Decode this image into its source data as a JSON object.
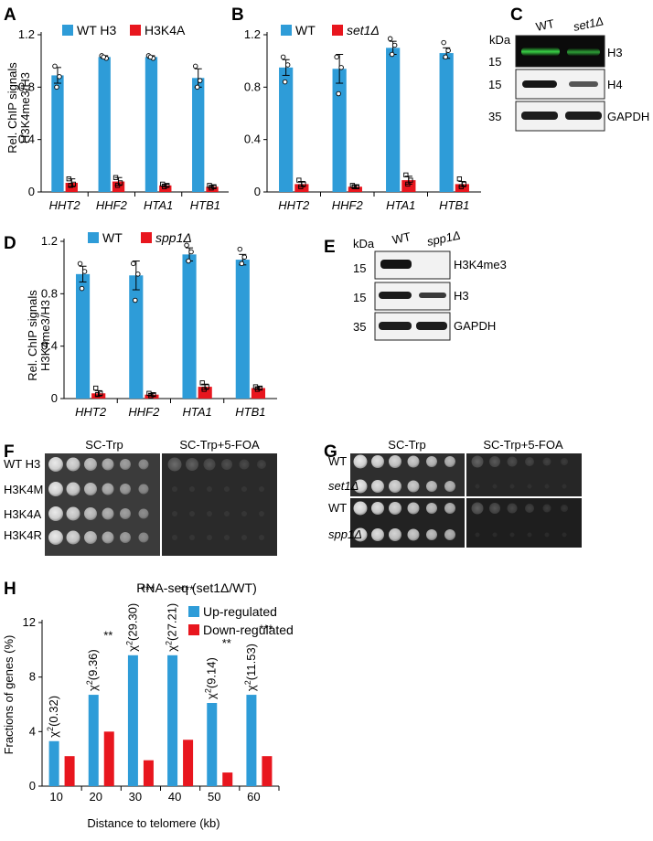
{
  "colors": {
    "blue": "#2E9CD8",
    "red": "#E8161E",
    "black": "#111111"
  },
  "panels": {
    "A": {
      "letter": "A",
      "ylabel": [
        "Rel. ChIP signals",
        "H3K4me3/H3"
      ],
      "legend": [
        "WT H3",
        "H3K4A"
      ],
      "yticks": [
        "0",
        "0.4",
        "0.8",
        "1.2"
      ],
      "chart_data": {
        "type": "bar",
        "categories": [
          "HHT2",
          "HHF2",
          "HTA1",
          "HTB1"
        ],
        "ylim": [
          0,
          1.2
        ],
        "series": [
          {
            "name": "WT H3",
            "values": [
              0.89,
              1.03,
              1.03,
              0.87
            ],
            "err": [
              0.06,
              0.01,
              0.01,
              0.07
            ],
            "points": [
              [
                0.96,
                0.88,
                0.8
              ],
              [
                1.04,
                1.02,
                1.03
              ],
              [
                1.04,
                1.02,
                1.03
              ],
              [
                0.96,
                0.85,
                0.8
              ]
            ]
          },
          {
            "name": "H3K4A",
            "values": [
              0.07,
              0.08,
              0.05,
              0.04
            ],
            "err": [
              0.03,
              0.03,
              0.01,
              0.01
            ],
            "points": [
              [
                0.1,
                0.06,
                0.05
              ],
              [
                0.11,
                0.07,
                0.05
              ],
              [
                0.06,
                0.05,
                0.04
              ],
              [
                0.05,
                0.04,
                0.03
              ]
            ]
          }
        ]
      }
    },
    "B": {
      "letter": "B",
      "legend": [
        "WT",
        "set1Δ"
      ],
      "yticks": [
        "0",
        "0.4",
        "0.8",
        "1.2"
      ],
      "chart_data": {
        "type": "bar",
        "categories": [
          "HHT2",
          "HHF2",
          "HTA1",
          "HTB1"
        ],
        "ylim": [
          0,
          1.2
        ],
        "series": [
          {
            "name": "WT",
            "values": [
              0.95,
              0.94,
              1.1,
              1.06
            ],
            "err": [
              0.06,
              0.11,
              0.05,
              0.04
            ],
            "points": [
              [
                1.03,
                0.97,
                0.84
              ],
              [
                1.03,
                0.95,
                0.75
              ],
              [
                1.17,
                1.12,
                1.05
              ],
              [
                1.14,
                1.08,
                1.03
              ]
            ]
          },
          {
            "name": "set1Δ",
            "values": [
              0.06,
              0.04,
              0.09,
              0.06
            ],
            "err": [
              0.02,
              0.01,
              0.03,
              0.02
            ],
            "points": [
              [
                0.09,
                0.06,
                0.04
              ],
              [
                0.05,
                0.04,
                0.04
              ],
              [
                0.13,
                0.09,
                0.06
              ],
              [
                0.1,
                0.06,
                0.04
              ]
            ]
          }
        ]
      }
    },
    "C": {
      "letter": "C",
      "kda": "kDa",
      "lanes": [
        "WT",
        "set1Δ"
      ],
      "markers": [
        "15",
        "15",
        "35"
      ],
      "proteins": [
        "H3",
        "H4",
        "GAPDH"
      ]
    },
    "D": {
      "letter": "D",
      "ylabel": [
        "Rel. ChIP signals",
        "H3K4me3/H3"
      ],
      "legend": [
        "WT",
        "spp1Δ"
      ],
      "yticks": [
        "0",
        "0.4",
        "0.8",
        "1.2"
      ],
      "chart_data": {
        "type": "bar",
        "categories": [
          "HHT2",
          "HHF2",
          "HTA1",
          "HTB1"
        ],
        "ylim": [
          0,
          1.2
        ],
        "series": [
          {
            "name": "WT",
            "values": [
              0.95,
              0.94,
              1.1,
              1.06
            ],
            "err": [
              0.06,
              0.11,
              0.05,
              0.04
            ],
            "points": [
              [
                1.03,
                0.97,
                0.84
              ],
              [
                1.03,
                0.95,
                0.75
              ],
              [
                1.17,
                1.12,
                1.05
              ],
              [
                1.14,
                1.08,
                1.03
              ]
            ]
          },
          {
            "name": "spp1Δ",
            "values": [
              0.04,
              0.03,
              0.09,
              0.08
            ],
            "err": [
              0.02,
              0.01,
              0.02,
              0.01
            ],
            "points": [
              [
                0.08,
                0.04,
                0.03
              ],
              [
                0.04,
                0.03,
                0.02
              ],
              [
                0.12,
                0.09,
                0.07
              ],
              [
                0.09,
                0.08,
                0.07
              ]
            ]
          }
        ]
      }
    },
    "E": {
      "letter": "E",
      "kda": "kDa",
      "lanes": [
        "WT",
        "spp1Δ"
      ],
      "markers": [
        "15",
        "15",
        "35"
      ],
      "proteins": [
        "H3K4me3",
        "H3",
        "GAPDH"
      ]
    },
    "F": {
      "letter": "F",
      "media": [
        "SC-Trp",
        "SC-Trp+5-FOA"
      ],
      "strains": [
        "WT H3",
        "H3K4M",
        "H3K4A",
        "H3K4R"
      ]
    },
    "G": {
      "letter": "G",
      "media": [
        "SC-Trp",
        "SC-Trp+5-FOA"
      ],
      "strains": [
        "WT",
        "set1Δ",
        "WT",
        "spp1Δ"
      ]
    },
    "H": {
      "letter": "H",
      "title": "RNA-seq (set1Δ/WT)",
      "ylabel": "Fractions of genes (%)",
      "xlabel": "Distance to telomere (kb)",
      "legend": [
        "Up-regulated",
        "Down-regulated"
      ],
      "yticks": [
        "0",
        "4",
        "8",
        "12"
      ],
      "chi": [
        "χ2(0.32)",
        "χ2(9.36)",
        "χ2(29.30)",
        "χ2(27.21)",
        "χ2(9.14)",
        "χ2(11.53)"
      ],
      "stars": [
        "",
        "**",
        "***",
        "***",
        "**",
        "***"
      ],
      "chart_data": {
        "type": "bar",
        "categories": [
          "10",
          "20",
          "30",
          "40",
          "50",
          "60"
        ],
        "ylim": [
          0,
          12
        ],
        "series": [
          {
            "name": "Up-regulated",
            "values": [
              3.3,
              6.7,
              9.6,
              9.6,
              6.1,
              6.7
            ]
          },
          {
            "name": "Down-regulated",
            "values": [
              2.2,
              4.0,
              1.9,
              3.4,
              1.0,
              2.2
            ]
          }
        ]
      }
    }
  }
}
